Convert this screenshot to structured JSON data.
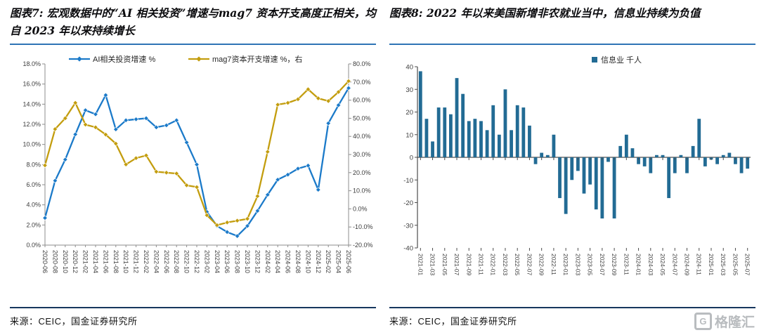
{
  "page": {
    "watermark": "格隆汇",
    "watermark_logo": "G"
  },
  "figures": [
    {
      "title": "图表7: 宏观数据中的“AI 相关投资”增速与mag7 资本开支高度正相关，均自 2023 年以来持续增长",
      "source": "来源：CEIC，国金证券研究所"
    },
    {
      "title": "图表8: 2022 年以来美国新增非农就业当中，信息业持续为负值",
      "source": "来源：CEIC，国金证券研究所"
    }
  ],
  "chart_data": [
    {
      "type": "line",
      "title": "",
      "legend_position": "top",
      "categories": [
        "2020-06",
        "2020-08",
        "2020-10",
        "2020-12",
        "2021-02",
        "2021-04",
        "2021-06",
        "2021-08",
        "2021-10",
        "2021-12",
        "2022-02",
        "2022-04",
        "2022-06",
        "2022-08",
        "2022-10",
        "2022-12",
        "2023-02",
        "2023-04",
        "2023-06",
        "2023-08",
        "2023-10",
        "2023-12",
        "2024-02",
        "2024-04",
        "2024-06",
        "2024-08",
        "2024-10",
        "2024-12",
        "2025-02",
        "2025-04",
        "2025-06"
      ],
      "series": [
        {
          "name": "AI相关投资增速 %",
          "axis": "left",
          "color": "#1b7ac9",
          "values": [
            2.7,
            6.4,
            8.5,
            11.0,
            13.4,
            13.0,
            14.9,
            11.5,
            12.4,
            12.5,
            12.6,
            11.7,
            11.9,
            12.4,
            10.2,
            8.0,
            3.3,
            1.9,
            1.3,
            0.9,
            1.9,
            3.4,
            5.0,
            6.5,
            7.0,
            7.6,
            7.9,
            5.5,
            12.1,
            13.9,
            15.6
          ]
        },
        {
          "name": "mag7资本开支增速 %，右",
          "axis": "right",
          "color": "#c39d0e",
          "values": [
            24,
            44,
            50,
            58.5,
            46.5,
            45,
            41,
            36,
            24.5,
            28,
            29.5,
            20.5,
            20,
            19.5,
            13,
            12,
            -3.5,
            -9,
            -7.5,
            -6.5,
            -5.5,
            7,
            31.5,
            57.5,
            58.5,
            60.5,
            66,
            61,
            59.5,
            64.5,
            70.5
          ]
        }
      ],
      "left_axis": {
        "min": 0,
        "max": 18,
        "ticks": [
          "18.0%",
          "16.0%",
          "14.0%",
          "12.0%",
          "10.0%",
          "8.0%",
          "6.0%",
          "4.0%",
          "2.0%",
          "0.0%"
        ]
      },
      "right_axis": {
        "min": -20,
        "max": 80,
        "ticks": [
          "80.0%",
          "70.0%",
          "60.0%",
          "50.0%",
          "40.0%",
          "30.0%",
          "20.0%",
          "10.0%",
          "0.0%",
          "-10.0%",
          "-20.0%"
        ]
      }
    },
    {
      "type": "bar",
      "legend": "信息业 千人",
      "color": "#226b94",
      "categories": [
        "2021-01",
        "2021-02",
        "2021-03",
        "2021-04",
        "2021-05",
        "2021-06",
        "2021-07",
        "2021-08",
        "2021-09",
        "2021-10",
        "2021-11",
        "2021-12",
        "2022-01",
        "2022-02",
        "2022-03",
        "2022-04",
        "2022-05",
        "2022-06",
        "2022-07",
        "2022-08",
        "2022-09",
        "2022-10",
        "2022-11",
        "2022-12",
        "2023-01",
        "2023-02",
        "2023-03",
        "2023-04",
        "2023-05",
        "2023-06",
        "2023-07",
        "2023-08",
        "2023-09",
        "2023-10",
        "2023-11",
        "2023-12",
        "2024-01",
        "2024-02",
        "2024-03",
        "2024-04",
        "2024-05",
        "2024-06",
        "2024-07",
        "2024-08",
        "2024-09",
        "2024-10",
        "2024-11",
        "2024-12",
        "2025-01",
        "2025-02",
        "2025-03",
        "2025-04",
        "2025-05",
        "2025-06",
        "2025-07"
      ],
      "values": [
        38,
        17,
        7,
        22,
        22,
        19,
        35,
        28,
        16,
        17,
        16,
        12,
        23,
        10,
        30,
        12,
        23,
        22,
        14,
        -3,
        2,
        1,
        10,
        -18,
        -25,
        -10,
        -6,
        -16,
        -12,
        -23,
        -27,
        -2,
        -27,
        5,
        10,
        4,
        -3,
        -4,
        -7,
        1,
        1,
        -18,
        -7,
        1,
        -7,
        5,
        17,
        -4,
        -1,
        -3,
        1,
        2,
        -3,
        -7,
        -5
      ],
      "y_axis": {
        "min": -40,
        "max": 40,
        "ticks": [
          "40",
          "30",
          "20",
          "10",
          "0",
          "-10",
          "-20",
          "-30",
          "-40"
        ]
      },
      "xtick_every": 2
    }
  ]
}
